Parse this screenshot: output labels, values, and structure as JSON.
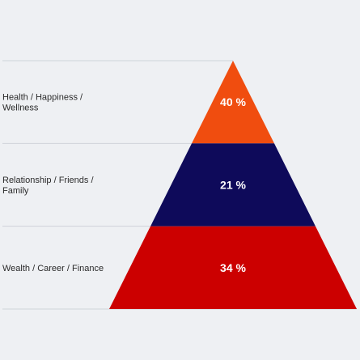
{
  "colors": {
    "background": "#eef0f3",
    "line": "#cfd3da"
  },
  "chart_data": {
    "type": "pyramid",
    "levels": [
      {
        "label_lines": [
          "Health / Happiness /",
          "Wellness"
        ],
        "value": 40,
        "value_text": "40 %",
        "color": "#f04d0f"
      },
      {
        "label_lines": [
          "Relationship / Friends /",
          "Family"
        ],
        "value": 21,
        "value_text": "21 %",
        "color": "#0e0a5a"
      },
      {
        "label_lines": [
          "Wealth / Career / Finance"
        ],
        "value": 34,
        "value_text": "34 %",
        "color": "#cc0000"
      }
    ]
  }
}
